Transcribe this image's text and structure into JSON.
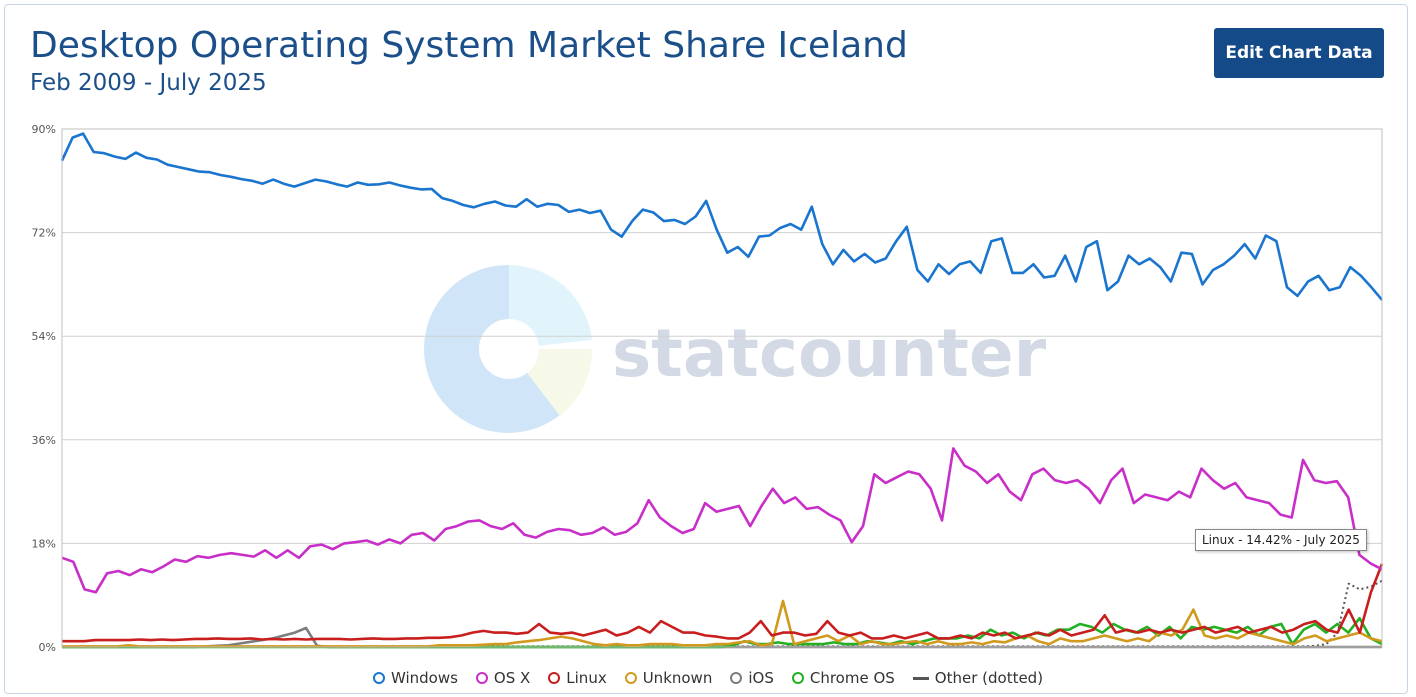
{
  "header": {
    "title": "Desktop Operating System Market Share Iceland",
    "subtitle": "Feb 2009 - July 2025",
    "edit_button": "Edit Chart Data"
  },
  "watermark": "statcounter",
  "tooltip": "Linux - 14.42% - July 2025",
  "chart_data": {
    "type": "line",
    "x_start": "Feb 2009",
    "x_end": "July 2025",
    "ylim": [
      0,
      90
    ],
    "yticks": [
      "0%",
      "18%",
      "36%",
      "54%",
      "72%",
      "90%"
    ],
    "grid": true,
    "legend_position": "bottom",
    "series": [
      {
        "name": "Windows",
        "color": "#1a75cf",
        "marker": "circle",
        "dotted": false,
        "values": [
          84.5,
          88.5,
          89.2,
          86.0,
          85.8,
          85.2,
          84.8,
          85.9,
          85.0,
          84.7,
          83.8,
          83.4,
          83.0,
          82.6,
          82.5,
          82.0,
          81.7,
          81.3,
          81.0,
          80.5,
          81.2,
          80.5,
          80.0,
          80.6,
          81.2,
          80.9,
          80.4,
          80.0,
          80.7,
          80.3,
          80.4,
          80.7,
          80.2,
          79.8,
          79.5,
          79.6,
          78.0,
          77.5,
          76.8,
          76.4,
          77.0,
          77.4,
          76.7,
          76.5,
          77.8,
          76.5,
          77.0,
          76.8,
          75.6,
          76.0,
          75.4,
          75.8,
          72.5,
          71.3,
          74.0,
          76.0,
          75.5,
          74.0,
          74.2,
          73.5,
          74.8,
          77.5,
          72.5,
          68.5,
          69.5,
          67.8,
          71.3,
          71.5,
          72.8,
          73.5,
          72.5,
          76.5,
          70.0,
          66.5,
          69.0,
          67.0,
          68.3,
          66.8,
          67.5,
          70.5,
          73.0,
          65.5,
          63.5,
          66.5,
          64.8,
          66.5,
          67.0,
          65.0,
          70.5,
          71.0,
          65.0,
          65.0,
          66.5,
          64.2,
          64.5,
          68.0,
          63.5,
          69.5,
          70.5,
          62.0,
          63.5,
          68.0,
          66.5,
          67.5,
          66.0,
          63.5,
          68.5,
          68.3,
          63.0,
          65.5,
          66.5,
          68.0,
          70.0,
          67.5,
          71.5,
          70.5,
          62.5,
          61.0,
          63.5,
          64.5,
          62.0,
          62.5,
          66.0,
          64.5,
          62.5,
          60.3
        ]
      },
      {
        "name": "OS X",
        "color": "#c82ec8",
        "marker": "circle",
        "dotted": false,
        "values": [
          15.5,
          14.8,
          10.0,
          9.5,
          12.8,
          13.2,
          12.5,
          13.5,
          13.0,
          14.0,
          15.2,
          14.8,
          15.8,
          15.5,
          16.0,
          16.3,
          16.0,
          15.7,
          16.8,
          15.5,
          16.8,
          15.5,
          17.5,
          17.8,
          17.0,
          18.0,
          18.2,
          18.5,
          17.8,
          18.7,
          18.0,
          19.5,
          19.8,
          18.5,
          20.5,
          21.0,
          21.8,
          22.0,
          21.0,
          20.5,
          21.5,
          19.5,
          19.0,
          20.0,
          20.5,
          20.3,
          19.5,
          19.8,
          20.8,
          19.5,
          20.0,
          21.5,
          25.5,
          22.5,
          21.0,
          19.8,
          20.5,
          25.0,
          23.5,
          24.0,
          24.5,
          21.0,
          24.5,
          27.5,
          25.0,
          26.0,
          24.0,
          24.3,
          23.0,
          22.0,
          18.2,
          21.0,
          30.0,
          28.5,
          29.5,
          30.5,
          30.0,
          27.5,
          22.0,
          34.5,
          31.5,
          30.5,
          28.5,
          30.0,
          27.0,
          25.5,
          30.0,
          31.0,
          29.0,
          28.5,
          29.0,
          27.5,
          25.0,
          29.0,
          31.0,
          25.0,
          26.5,
          26.0,
          25.5,
          27.0,
          26.0,
          31.0,
          29.0,
          27.5,
          28.5,
          26.0,
          25.5,
          25.0,
          23.0,
          22.5,
          32.5,
          29.0,
          28.5,
          28.8,
          26.0,
          16.0,
          14.5,
          13.5
        ]
      },
      {
        "name": "Linux",
        "color": "#c81e1e",
        "marker": "circle",
        "dotted": false,
        "values": [
          1.0,
          1.0,
          1.0,
          1.2,
          1.2,
          1.2,
          1.2,
          1.3,
          1.2,
          1.3,
          1.2,
          1.3,
          1.4,
          1.4,
          1.5,
          1.4,
          1.4,
          1.5,
          1.3,
          1.4,
          1.3,
          1.4,
          1.3,
          1.4,
          1.4,
          1.4,
          1.3,
          1.4,
          1.5,
          1.4,
          1.4,
          1.5,
          1.5,
          1.6,
          1.6,
          1.7,
          2.0,
          2.5,
          2.8,
          2.5,
          2.5,
          2.3,
          2.5,
          4.0,
          2.5,
          2.3,
          2.5,
          2.0,
          2.5,
          3.0,
          2.0,
          2.5,
          3.5,
          2.5,
          4.5,
          3.5,
          2.5,
          2.5,
          2.0,
          1.8,
          1.5,
          1.5,
          2.5,
          4.5,
          2.0,
          2.5,
          2.5,
          2.0,
          2.3,
          4.5,
          2.5,
          2.0,
          2.5,
          1.5,
          1.5,
          2.0,
          1.5,
          2.0,
          2.5,
          1.5,
          1.5,
          2.0,
          1.5,
          2.5,
          2.0,
          2.5,
          1.5,
          2.0,
          2.5,
          2.0,
          3.0,
          2.0,
          2.5,
          3.0,
          5.5,
          2.5,
          3.0,
          2.5,
          3.0,
          2.5,
          3.0,
          2.5,
          3.0,
          3.5,
          2.5,
          3.0,
          3.5,
          2.5,
          3.0,
          3.5,
          2.5,
          3.0,
          4.0,
          4.5,
          3.0,
          2.5,
          6.5,
          2.5,
          9.5,
          14.42
        ]
      },
      {
        "name": "Unknown",
        "color": "#d19a1e",
        "marker": "circle",
        "dotted": false,
        "values": [
          0.1,
          0.1,
          0.1,
          0.1,
          0.1,
          0.1,
          0.3,
          0.1,
          0.1,
          0.1,
          0.1,
          0.1,
          0.1,
          0.1,
          0.1,
          0.1,
          0.1,
          0.1,
          0.1,
          0.1,
          0.1,
          0.1,
          0.1,
          0.1,
          0.1,
          0.1,
          0.1,
          0.1,
          0.1,
          0.1,
          0.1,
          0.1,
          0.1,
          0.1,
          0.3,
          0.3,
          0.3,
          0.3,
          0.4,
          0.5,
          0.5,
          0.8,
          1.0,
          1.2,
          1.5,
          1.8,
          1.5,
          1.0,
          0.5,
          0.3,
          0.5,
          0.3,
          0.3,
          0.5,
          0.5,
          0.5,
          0.3,
          0.3,
          0.3,
          0.5,
          0.5,
          0.8,
          1.0,
          0.3,
          0.5,
          8.0,
          0.5,
          1.0,
          1.5,
          2.0,
          1.0,
          2.0,
          0.5,
          1.0,
          0.5,
          0.5,
          0.8,
          1.0,
          0.5,
          1.0,
          0.5,
          0.5,
          0.8,
          0.5,
          1.0,
          0.8,
          1.5,
          2.0,
          1.0,
          0.5,
          1.5,
          1.0,
          1.0,
          1.5,
          2.0,
          1.5,
          1.0,
          1.5,
          1.0,
          2.5,
          2.0,
          3.0,
          6.5,
          2.0,
          1.5,
          2.0,
          1.5,
          2.5,
          2.0,
          1.5,
          1.0,
          0.5,
          1.5,
          2.0,
          1.0,
          1.5,
          2.0,
          2.5,
          1.5,
          1.0
        ]
      },
      {
        "name": "iOS",
        "color": "#7d7d7d",
        "marker": "circle",
        "dotted": false,
        "values": [
          0,
          0,
          0,
          0,
          0,
          0,
          0,
          0,
          0,
          0,
          0,
          0,
          0,
          0.1,
          0.2,
          0.3,
          0.6,
          0.9,
          1.2,
          1.5,
          2.0,
          2.5,
          3.3,
          0.2,
          0,
          0,
          0,
          0,
          0,
          0,
          0,
          0,
          0,
          0,
          0,
          0,
          0,
          0,
          0,
          0,
          0,
          0,
          0,
          0,
          0,
          0,
          0,
          0,
          0,
          0,
          0,
          0,
          0,
          0,
          0,
          0,
          0,
          0,
          0,
          0,
          0,
          0,
          0,
          0,
          0,
          0,
          0,
          0,
          0,
          0,
          0,
          0,
          0,
          0,
          0,
          0,
          0,
          0,
          0,
          0,
          0,
          0,
          0,
          0,
          0,
          0,
          0,
          0,
          0,
          0,
          0,
          0,
          0,
          0,
          0,
          0,
          0,
          0,
          0,
          0,
          0,
          0,
          0,
          0,
          0,
          0,
          0,
          0,
          0,
          0,
          0,
          0,
          0,
          0,
          0,
          0,
          0,
          0,
          0,
          0
        ]
      },
      {
        "name": "Chrome OS",
        "color": "#22b022",
        "marker": "circle",
        "dotted": false,
        "values": [
          0,
          0,
          0,
          0,
          0,
          0,
          0,
          0,
          0,
          0,
          0,
          0,
          0,
          0,
          0,
          0,
          0,
          0,
          0,
          0,
          0,
          0,
          0,
          0,
          0,
          0,
          0,
          0,
          0,
          0,
          0,
          0,
          0,
          0,
          0,
          0,
          0,
          0,
          0,
          0,
          0,
          0,
          0,
          0,
          0,
          0,
          0,
          0,
          0,
          0,
          0,
          0,
          0,
          0,
          0,
          0,
          0,
          0,
          0,
          0,
          0.3,
          1.0,
          0.5,
          0.5,
          0.8,
          0.5,
          0.5,
          0.5,
          0.5,
          0.8,
          0.5,
          0.5,
          1.0,
          0.8,
          0.5,
          1.0,
          0.5,
          1.0,
          1.5,
          1.5,
          1.5,
          2.0,
          1.5,
          3.0,
          2.0,
          2.5,
          1.5,
          2.5,
          2.0,
          3.0,
          3.0,
          4.0,
          3.5,
          2.5,
          4.0,
          3.0,
          2.5,
          3.5,
          2.0,
          3.5,
          1.5,
          3.5,
          3.0,
          3.5,
          3.0,
          2.5,
          3.5,
          2.0,
          3.5,
          4.0,
          0.5,
          3.0,
          4.0,
          2.5,
          4.0,
          2.5,
          5.0,
          1.5,
          0.5
        ]
      },
      {
        "name": "Other (dotted)",
        "color": "#555555",
        "marker": "line",
        "dotted": true,
        "values": [
          0.1,
          0.1,
          0.1,
          0.1,
          0.1,
          0.1,
          0.1,
          0.1,
          0.1,
          0.1,
          0.1,
          0.1,
          0.1,
          0.1,
          0.1,
          0.1,
          0.1,
          0.1,
          0.1,
          0.1,
          0.1,
          0.1,
          0.1,
          0.1,
          0.1,
          0.1,
          0.1,
          0.1,
          0.1,
          0.1,
          0.1,
          0.1,
          0.1,
          0.1,
          0.1,
          0.1,
          0.1,
          0.1,
          0.1,
          0.1,
          0.1,
          0.1,
          0.1,
          0.1,
          0.1,
          0.1,
          0.1,
          0.1,
          0.1,
          0.1,
          0.1,
          0.1,
          0.1,
          0.1,
          0.1,
          0.1,
          0.1,
          0.1,
          0.1,
          0.1,
          0.1,
          0.1,
          0.1,
          0.1,
          0.1,
          0.1,
          0.1,
          0.1,
          0.1,
          0.1,
          0.1,
          0.1,
          0.1,
          0.1,
          0.1,
          0.1,
          0.1,
          0.1,
          0.1,
          0.1,
          0.1,
          0.1,
          0.1,
          0.1,
          0.1,
          0.1,
          0.1,
          0.1,
          0.1,
          0.1,
          0.1,
          0.1,
          0.1,
          0.1,
          0.1,
          0.1,
          0.1,
          0.1,
          0.1,
          0.1,
          0.1,
          0.1,
          0.1,
          0.1,
          0.1,
          0.1,
          0.1,
          0.1,
          0.1,
          0.1,
          0.1,
          0.1,
          0.1,
          0.2,
          0.5,
          2.5,
          11.0,
          10.0,
          10.5,
          11.5
        ]
      }
    ]
  }
}
